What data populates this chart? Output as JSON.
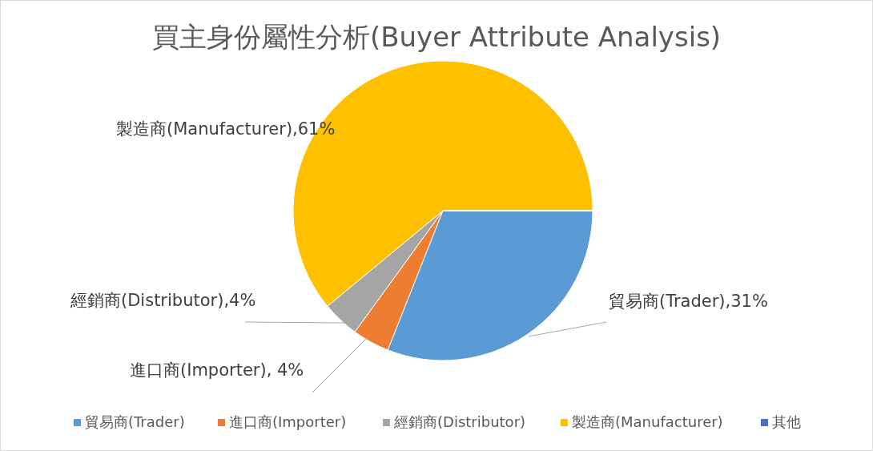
{
  "chart_data": {
    "type": "pie",
    "title": "買主身份屬性分析(Buyer Attribute Analysis)",
    "categories": [
      "貿易商(Trader)",
      "進口商(Importer)",
      "經銷商(Distributor)",
      "製造商(Manufacturer)",
      "其他"
    ],
    "values": [
      31,
      4,
      4,
      61,
      0
    ],
    "colors": [
      "#5b9bd5",
      "#ed7d31",
      "#a5a5a5",
      "#ffc000",
      "#4472c4"
    ],
    "value_labels": [
      "貿易商(Trader),31%",
      "進口商(Importer), 4%",
      "經銷商(Distributor),4%",
      "製造商(Manufacturer),61%",
      null
    ],
    "legend": "bottom"
  }
}
